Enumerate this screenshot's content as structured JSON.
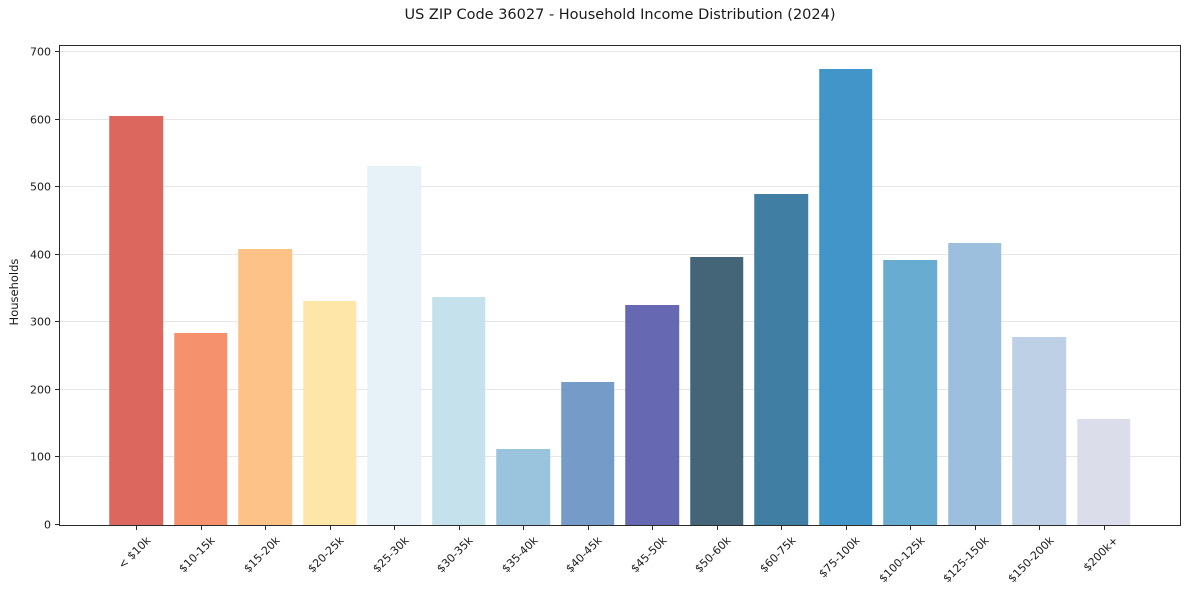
{
  "chart_data": {
    "type": "bar",
    "title": "US ZIP Code 36027 - Household Income Distribution (2024)",
    "xlabel": "",
    "ylabel": "Households",
    "categories": [
      "< $10k",
      "$10-15k",
      "$15-20k",
      "$20-25k",
      "$25-30k",
      "$30-35k",
      "$35-40k",
      "$40-45k",
      "$45-50k",
      "$50-60k",
      "$60-75k",
      "$75-100k",
      "$100-125k",
      "$125-150k",
      "$150-200k",
      "$200k+"
    ],
    "values": [
      605,
      284,
      409,
      331,
      532,
      337,
      113,
      212,
      325,
      397,
      490,
      675,
      393,
      418,
      278,
      157
    ],
    "bar_colors": [
      "#d95b52",
      "#f48a62",
      "#fcbd7f",
      "#fde4a1",
      "#e4f1f6",
      "#c1e0eb",
      "#92c0db",
      "#6b93c5",
      "#5a5cab",
      "#36596e",
      "#32749c",
      "#348dc4",
      "#5ea6cd",
      "#93bad9",
      "#b8cce3",
      "#d8dae8"
    ],
    "yticks": [
      0,
      100,
      200,
      300,
      400,
      500,
      600,
      700
    ],
    "ylim": [
      0,
      709
    ],
    "grid": "horizontal-only",
    "grid_color": "#e7e7e7",
    "background": "#ffffff",
    "x_tick_rotation_deg": 45,
    "legend": "none"
  }
}
